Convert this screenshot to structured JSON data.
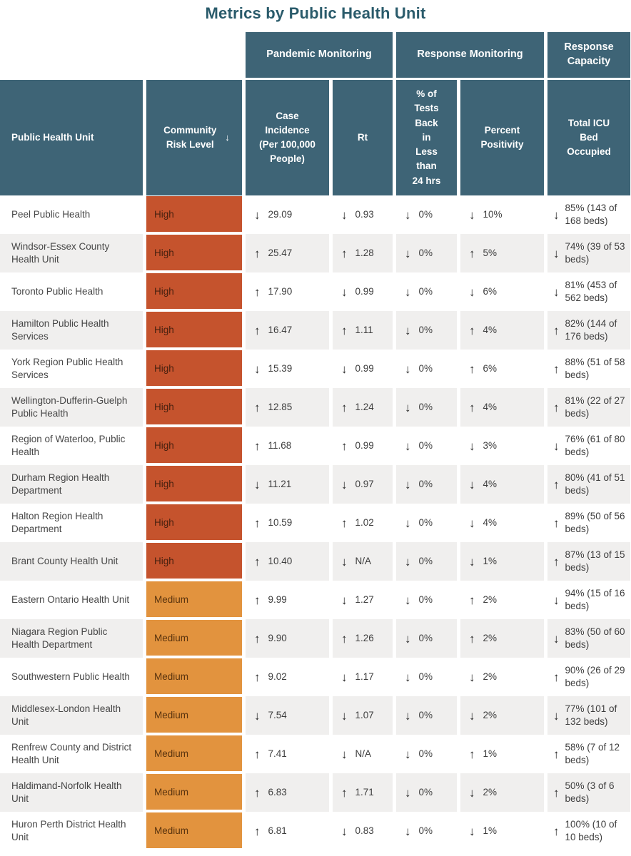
{
  "chart_data": {
    "type": "table",
    "title": "Metrics by Public Health Unit",
    "column_groups": [
      {
        "label": "Pandemic Monitoring",
        "columns": [
          "case_incidence",
          "rt"
        ]
      },
      {
        "label": "Response Monitoring",
        "columns": [
          "tests_back_24h",
          "percent_positivity"
        ]
      },
      {
        "label": "Response Capacity",
        "columns": [
          "icu_occupied"
        ]
      }
    ],
    "columns": [
      {
        "key": "unit",
        "label": "Public Health Unit"
      },
      {
        "key": "risk_level",
        "label": "Community Risk Level",
        "sorted": "descending"
      },
      {
        "key": "case_incidence",
        "label": "Case Incidence (Per 100,000 People)"
      },
      {
        "key": "rt",
        "label": "Rt"
      },
      {
        "key": "tests_back_24h",
        "label": "% of Tests Back in Less than 24 hrs"
      },
      {
        "key": "percent_positivity",
        "label": "Percent Positivity"
      },
      {
        "key": "icu_occupied",
        "label": "Total ICU Bed Occupied"
      }
    ],
    "rows": [
      {
        "unit": "Peel Public Health",
        "risk_level": "High",
        "case_incidence": {
          "trend": "down",
          "value": "29.09"
        },
        "rt": {
          "trend": "down",
          "value": "0.93"
        },
        "tests_back_24h": {
          "trend": "down",
          "value": "0%"
        },
        "percent_positivity": {
          "trend": "down",
          "value": "10%"
        },
        "icu_occupied": {
          "trend": "down",
          "value": "85% (143 of 168 beds)"
        }
      },
      {
        "unit": "Windsor-Essex County Health Unit",
        "risk_level": "High",
        "case_incidence": {
          "trend": "up",
          "value": "25.47"
        },
        "rt": {
          "trend": "up",
          "value": "1.28"
        },
        "tests_back_24h": {
          "trend": "down",
          "value": "0%"
        },
        "percent_positivity": {
          "trend": "up",
          "value": "5%"
        },
        "icu_occupied": {
          "trend": "down",
          "value": "74% (39 of 53 beds)"
        }
      },
      {
        "unit": "Toronto Public Health",
        "risk_level": "High",
        "case_incidence": {
          "trend": "up",
          "value": "17.90"
        },
        "rt": {
          "trend": "down",
          "value": "0.99"
        },
        "tests_back_24h": {
          "trend": "down",
          "value": "0%"
        },
        "percent_positivity": {
          "trend": "down",
          "value": "6%"
        },
        "icu_occupied": {
          "trend": "down",
          "value": "81% (453 of 562 beds)"
        }
      },
      {
        "unit": "Hamilton Public Health Services",
        "risk_level": "High",
        "case_incidence": {
          "trend": "up",
          "value": "16.47"
        },
        "rt": {
          "trend": "up",
          "value": "1.11"
        },
        "tests_back_24h": {
          "trend": "down",
          "value": "0%"
        },
        "percent_positivity": {
          "trend": "up",
          "value": "4%"
        },
        "icu_occupied": {
          "trend": "up",
          "value": "82% (144 of 176 beds)"
        }
      },
      {
        "unit": "York Region Public Health Services",
        "risk_level": "High",
        "case_incidence": {
          "trend": "down",
          "value": "15.39"
        },
        "rt": {
          "trend": "down",
          "value": "0.99"
        },
        "tests_back_24h": {
          "trend": "down",
          "value": "0%"
        },
        "percent_positivity": {
          "trend": "up",
          "value": "6%"
        },
        "icu_occupied": {
          "trend": "up",
          "value": "88% (51 of 58 beds)"
        }
      },
      {
        "unit": "Wellington-Dufferin-Guelph Public Health",
        "risk_level": "High",
        "case_incidence": {
          "trend": "up",
          "value": "12.85"
        },
        "rt": {
          "trend": "up",
          "value": "1.24"
        },
        "tests_back_24h": {
          "trend": "down",
          "value": "0%"
        },
        "percent_positivity": {
          "trend": "up",
          "value": "4%"
        },
        "icu_occupied": {
          "trend": "up",
          "value": "81% (22 of 27 beds)"
        }
      },
      {
        "unit": "Region of Waterloo, Public Health",
        "risk_level": "High",
        "case_incidence": {
          "trend": "up",
          "value": "11.68"
        },
        "rt": {
          "trend": "up",
          "value": "0.99"
        },
        "tests_back_24h": {
          "trend": "down",
          "value": "0%"
        },
        "percent_positivity": {
          "trend": "down",
          "value": "3%"
        },
        "icu_occupied": {
          "trend": "down",
          "value": "76% (61 of 80 beds)"
        }
      },
      {
        "unit": "Durham Region Health Department",
        "risk_level": "High",
        "case_incidence": {
          "trend": "down",
          "value": "11.21"
        },
        "rt": {
          "trend": "down",
          "value": "0.97"
        },
        "tests_back_24h": {
          "trend": "down",
          "value": "0%"
        },
        "percent_positivity": {
          "trend": "down",
          "value": "4%"
        },
        "icu_occupied": {
          "trend": "up",
          "value": "80% (41 of 51 beds)"
        }
      },
      {
        "unit": "Halton Region Health Department",
        "risk_level": "High",
        "case_incidence": {
          "trend": "up",
          "value": "10.59"
        },
        "rt": {
          "trend": "up",
          "value": "1.02"
        },
        "tests_back_24h": {
          "trend": "down",
          "value": "0%"
        },
        "percent_positivity": {
          "trend": "down",
          "value": "4%"
        },
        "icu_occupied": {
          "trend": "up",
          "value": "89% (50 of 56 beds)"
        }
      },
      {
        "unit": "Brant County Health Unit",
        "risk_level": "High",
        "case_incidence": {
          "trend": "up",
          "value": "10.40"
        },
        "rt": {
          "trend": "down",
          "value": "N/A"
        },
        "tests_back_24h": {
          "trend": "down",
          "value": "0%"
        },
        "percent_positivity": {
          "trend": "down",
          "value": "1%"
        },
        "icu_occupied": {
          "trend": "up",
          "value": "87% (13 of 15 beds)"
        }
      },
      {
        "unit": "Eastern Ontario Health Unit",
        "risk_level": "Medium",
        "case_incidence": {
          "trend": "up",
          "value": "9.99"
        },
        "rt": {
          "trend": "down",
          "value": "1.27"
        },
        "tests_back_24h": {
          "trend": "down",
          "value": "0%"
        },
        "percent_positivity": {
          "trend": "up",
          "value": "2%"
        },
        "icu_occupied": {
          "trend": "down",
          "value": "94% (15 of 16 beds)"
        }
      },
      {
        "unit": "Niagara Region Public Health Department",
        "risk_level": "Medium",
        "case_incidence": {
          "trend": "up",
          "value": "9.90"
        },
        "rt": {
          "trend": "up",
          "value": "1.26"
        },
        "tests_back_24h": {
          "trend": "down",
          "value": "0%"
        },
        "percent_positivity": {
          "trend": "up",
          "value": "2%"
        },
        "icu_occupied": {
          "trend": "down",
          "value": "83% (50 of 60 beds)"
        }
      },
      {
        "unit": "Southwestern Public Health",
        "risk_level": "Medium",
        "case_incidence": {
          "trend": "up",
          "value": "9.02"
        },
        "rt": {
          "trend": "down",
          "value": "1.17"
        },
        "tests_back_24h": {
          "trend": "down",
          "value": "0%"
        },
        "percent_positivity": {
          "trend": "down",
          "value": "2%"
        },
        "icu_occupied": {
          "trend": "up",
          "value": "90% (26 of 29 beds)"
        }
      },
      {
        "unit": "Middlesex-London Health Unit",
        "risk_level": "Medium",
        "case_incidence": {
          "trend": "down",
          "value": "7.54"
        },
        "rt": {
          "trend": "down",
          "value": "1.07"
        },
        "tests_back_24h": {
          "trend": "down",
          "value": "0%"
        },
        "percent_positivity": {
          "trend": "down",
          "value": "2%"
        },
        "icu_occupied": {
          "trend": "down",
          "value": "77% (101 of 132 beds)"
        }
      },
      {
        "unit": "Renfrew County and District Health Unit",
        "risk_level": "Medium",
        "case_incidence": {
          "trend": "up",
          "value": "7.41"
        },
        "rt": {
          "trend": "down",
          "value": "N/A"
        },
        "tests_back_24h": {
          "trend": "down",
          "value": "0%"
        },
        "percent_positivity": {
          "trend": "up",
          "value": "1%"
        },
        "icu_occupied": {
          "trend": "up",
          "value": "58% (7 of 12 beds)"
        }
      },
      {
        "unit": "Haldimand-Norfolk Health Unit",
        "risk_level": "Medium",
        "case_incidence": {
          "trend": "up",
          "value": "6.83"
        },
        "rt": {
          "trend": "up",
          "value": "1.71"
        },
        "tests_back_24h": {
          "trend": "down",
          "value": "0%"
        },
        "percent_positivity": {
          "trend": "down",
          "value": "2%"
        },
        "icu_occupied": {
          "trend": "up",
          "value": "50% (3 of 6 beds)"
        }
      },
      {
        "unit": "Huron Perth District Health Unit",
        "risk_level": "Medium",
        "case_incidence": {
          "trend": "up",
          "value": "6.81"
        },
        "rt": {
          "trend": "down",
          "value": "0.83"
        },
        "tests_back_24h": {
          "trend": "down",
          "value": "0%"
        },
        "percent_positivity": {
          "trend": "down",
          "value": "1%"
        },
        "icu_occupied": {
          "trend": "up",
          "value": "100% (10 of 10 beds)"
        }
      }
    ]
  },
  "icons": {
    "up_arrow": "↑",
    "down_arrow": "↓",
    "sort_descending_arrow": "↓"
  },
  "colors": {
    "header_bg": "#3e6476",
    "title_text": "#2a5b6b",
    "risk_high_bg": "#c5532d",
    "risk_high_text": "#47200f",
    "risk_medium_bg": "#e2933e",
    "risk_medium_text": "#59330e",
    "row_alt_bg": "#f0efee",
    "body_text": "#474747",
    "value_text": "#3d3d3d",
    "arrow_color": "#272727"
  }
}
